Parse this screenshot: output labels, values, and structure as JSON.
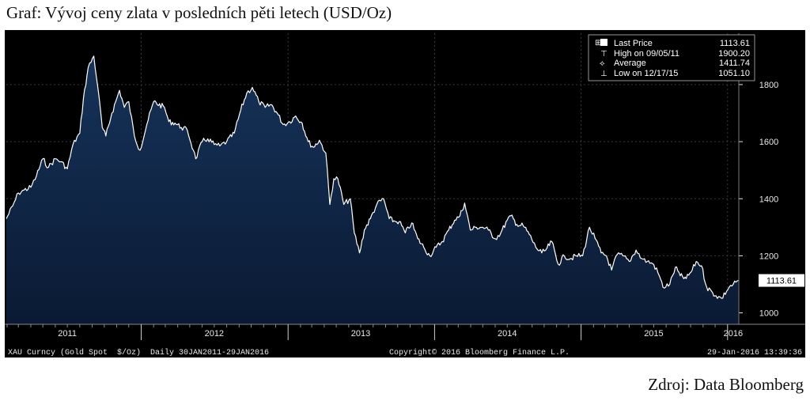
{
  "caption": "Graf: Vývoj ceny zlata v posledních pěti letech (USD/Oz)",
  "source": "Zdroj: Data Bloomberg",
  "colors": {
    "background": "#000000",
    "area_top": "#16335a",
    "area_bottom": "#0a1a33",
    "line": "#ffffff",
    "grid": "#3a3a3a",
    "text": "#e8e8e8"
  },
  "legend": {
    "rows": [
      {
        "icon": "square-icon",
        "label": "Last Price",
        "value": "1113.61"
      },
      {
        "icon": "high-marker-icon",
        "label": "High on 09/05/11",
        "value": "1900.20"
      },
      {
        "icon": "average-marker-icon",
        "label": "Average",
        "value": "1411.74"
      },
      {
        "icon": "low-marker-icon",
        "label": "Low on 12/17/15",
        "value": "1051.10"
      }
    ]
  },
  "last_price_tag": "1113.61",
  "footer": {
    "left": "XAU Curncy (Gold Spot  $/Oz)  Daily 30JAN2011-29JAN2016",
    "center": "Copyright© 2016 Bloomberg Finance L.P.",
    "right": "29-Jan-2016 13:39:36"
  },
  "chart_data": {
    "type": "area",
    "title": "",
    "xlabel": "",
    "ylabel": "",
    "xlim": [
      "2011-01-30",
      "2016-01-29"
    ],
    "ylim": [
      960,
      1980
    ],
    "yticks": [
      1000,
      1200,
      1400,
      1600,
      1800
    ],
    "year_labels": [
      {
        "label": "2011",
        "date": "2011-07-01"
      },
      {
        "label": "2012",
        "date": "2012-07-01"
      },
      {
        "label": "2013",
        "date": "2013-07-01"
      },
      {
        "label": "2014",
        "date": "2014-07-01"
      },
      {
        "label": "2015",
        "date": "2015-07-01"
      },
      {
        "label": "2016",
        "date": "2016-01-15"
      }
    ],
    "grid": true,
    "legend_position": "top-right",
    "series": [
      {
        "x": [
          "2011-01-30",
          "2011-02-15",
          "2011-03-01",
          "2011-03-15",
          "2011-04-01",
          "2011-04-15",
          "2011-05-01",
          "2011-05-15",
          "2011-06-01",
          "2011-06-15",
          "2011-07-01",
          "2011-07-15",
          "2011-08-01",
          "2011-08-10",
          "2011-08-22",
          "2011-09-05",
          "2011-09-15",
          "2011-09-26",
          "2011-10-05",
          "2011-10-20",
          "2011-11-08",
          "2011-11-20",
          "2011-12-01",
          "2011-12-15",
          "2011-12-29",
          "2012-01-15",
          "2012-02-01",
          "2012-02-28",
          "2012-03-10",
          "2012-03-25",
          "2012-04-10",
          "2012-04-25",
          "2012-05-10",
          "2012-05-16",
          "2012-06-01",
          "2012-06-15",
          "2012-07-01",
          "2012-07-15",
          "2012-08-01",
          "2012-08-20",
          "2012-09-05",
          "2012-09-20",
          "2012-10-04",
          "2012-10-20",
          "2012-11-05",
          "2012-11-20",
          "2012-12-05",
          "2012-12-20",
          "2013-01-05",
          "2013-01-20",
          "2013-02-05",
          "2013-02-20",
          "2013-03-05",
          "2013-03-20",
          "2013-04-05",
          "2013-04-15",
          "2013-04-25",
          "2013-05-05",
          "2013-05-20",
          "2013-06-05",
          "2013-06-15",
          "2013-06-28",
          "2013-07-10",
          "2013-07-25",
          "2013-08-10",
          "2013-08-27",
          "2013-09-10",
          "2013-09-25",
          "2013-10-05",
          "2013-10-20",
          "2013-11-05",
          "2013-11-20",
          "2013-12-05",
          "2013-12-20",
          "2014-01-05",
          "2014-01-20",
          "2014-02-05",
          "2014-02-20",
          "2014-03-05",
          "2014-03-17",
          "2014-03-31",
          "2014-04-15",
          "2014-05-01",
          "2014-05-15",
          "2014-06-01",
          "2014-06-15",
          "2014-07-01",
          "2014-07-10",
          "2014-07-25",
          "2014-08-10",
          "2014-08-25",
          "2014-09-10",
          "2014-09-25",
          "2014-10-05",
          "2014-10-20",
          "2014-11-05",
          "2014-11-20",
          "2014-12-05",
          "2014-12-20",
          "2015-01-05",
          "2015-01-22",
          "2015-02-05",
          "2015-02-20",
          "2015-03-05",
          "2015-03-18",
          "2015-04-01",
          "2015-04-15",
          "2015-05-01",
          "2015-05-18",
          "2015-06-01",
          "2015-06-15",
          "2015-07-01",
          "2015-07-15",
          "2015-07-24",
          "2015-08-10",
          "2015-08-24",
          "2015-09-05",
          "2015-09-20",
          "2015-10-05",
          "2015-10-15",
          "2015-10-28",
          "2015-11-10",
          "2015-11-25",
          "2015-12-03",
          "2015-12-17",
          "2016-01-05",
          "2016-01-15",
          "2016-01-29"
        ],
        "y": [
          1330,
          1375,
          1420,
          1430,
          1440,
          1480,
          1540,
          1510,
          1540,
          1530,
          1505,
          1590,
          1630,
          1750,
          1860,
          1900,
          1790,
          1650,
          1620,
          1700,
          1780,
          1720,
          1740,
          1620,
          1570,
          1660,
          1740,
          1720,
          1670,
          1665,
          1650,
          1640,
          1570,
          1540,
          1600,
          1610,
          1590,
          1585,
          1600,
          1630,
          1710,
          1770,
          1790,
          1740,
          1720,
          1730,
          1700,
          1660,
          1670,
          1690,
          1665,
          1600,
          1580,
          1605,
          1560,
          1380,
          1470,
          1470,
          1380,
          1400,
          1280,
          1210,
          1290,
          1330,
          1380,
          1400,
          1330,
          1320,
          1320,
          1280,
          1315,
          1260,
          1230,
          1200,
          1230,
          1250,
          1290,
          1325,
          1340,
          1385,
          1290,
          1300,
          1300,
          1290,
          1260,
          1280,
          1325,
          1340,
          1310,
          1305,
          1275,
          1230,
          1210,
          1220,
          1250,
          1170,
          1200,
          1190,
          1200,
          1200,
          1300,
          1260,
          1210,
          1200,
          1150,
          1205,
          1200,
          1180,
          1220,
          1190,
          1180,
          1170,
          1130,
          1090,
          1100,
          1160,
          1130,
          1120,
          1150,
          1180,
          1165,
          1090,
          1070,
          1060,
          1051,
          1090,
          1100,
          1113.61
        ]
      }
    ]
  }
}
